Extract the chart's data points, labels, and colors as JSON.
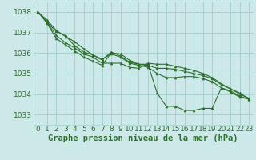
{
  "background_color": "#cce8e8",
  "grid_color": "#a8d0d0",
  "line_color": "#2d6e2d",
  "marker_color": "#2d6e2d",
  "xlabel": "Graphe pression niveau de la mer (hPa)",
  "xlabel_fontsize": 7.5,
  "tick_fontsize": 6.5,
  "ylim": [
    1032.5,
    1038.5
  ],
  "yticks": [
    1033,
    1034,
    1035,
    1036,
    1037,
    1038
  ],
  "xlim": [
    -0.5,
    23.5
  ],
  "xticks": [
    0,
    1,
    2,
    3,
    4,
    5,
    6,
    7,
    8,
    9,
    10,
    11,
    12,
    13,
    14,
    15,
    16,
    17,
    18,
    19,
    20,
    21,
    22,
    23
  ],
  "lines": [
    [
      1038.0,
      1037.6,
      1037.1,
      1036.8,
      1036.55,
      1036.2,
      1035.9,
      1035.65,
      1036.05,
      1035.85,
      1035.55,
      1035.45,
      1035.45,
      1034.05,
      1033.4,
      1033.4,
      1033.2,
      1033.2,
      1033.3,
      1033.3,
      1034.3,
      1034.15,
      1033.9,
      1033.75
    ],
    [
      1038.0,
      1037.5,
      1037.05,
      1036.85,
      1036.35,
      1036.05,
      1035.9,
      1035.7,
      1035.95,
      1035.8,
      1035.5,
      1035.4,
      1035.3,
      1035.0,
      1034.8,
      1034.8,
      1034.85,
      1034.85,
      1034.75,
      1034.6,
      1034.3,
      1034.1,
      1033.85,
      1033.75
    ],
    [
      1038.0,
      1037.5,
      1036.85,
      1036.5,
      1036.25,
      1035.95,
      1035.8,
      1035.5,
      1035.5,
      1035.5,
      1035.3,
      1035.25,
      1035.5,
      1035.45,
      1035.45,
      1035.35,
      1035.25,
      1035.15,
      1035.0,
      1034.8,
      1034.5,
      1034.25,
      1034.05,
      1033.75
    ],
    [
      1038.0,
      1037.45,
      1036.7,
      1036.4,
      1036.1,
      1035.8,
      1035.6,
      1035.4,
      1036.0,
      1035.95,
      1035.65,
      1035.45,
      1035.4,
      1035.25,
      1035.25,
      1035.2,
      1035.1,
      1035.0,
      1034.9,
      1034.75,
      1034.45,
      1034.25,
      1034.0,
      1033.8
    ]
  ]
}
